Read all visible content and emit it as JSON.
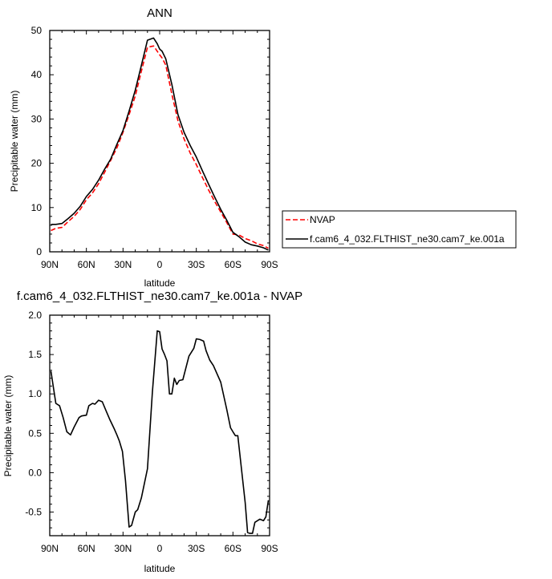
{
  "chart_data": [
    {
      "type": "line",
      "title": "ANN",
      "xlabel": "latitude",
      "ylabel": "Precipitable water (mm)",
      "x_ticks": [
        {
          "lat": 90,
          "label": "90N"
        },
        {
          "lat": 60,
          "label": "60N"
        },
        {
          "lat": 30,
          "label": "30N"
        },
        {
          "lat": 0,
          "label": "0"
        },
        {
          "lat": -30,
          "label": "30S"
        },
        {
          "lat": -60,
          "label": "60S"
        },
        {
          "lat": -90,
          "label": "90S"
        }
      ],
      "xlim": [
        90,
        -90
      ],
      "ylim": [
        0,
        50
      ],
      "y_ticks": [
        0,
        10,
        20,
        30,
        40,
        50
      ],
      "legend_position": "outside-right",
      "series": [
        {
          "name": "NVAP",
          "color": "#ff0000",
          "dash": "dashed",
          "lat": [
            89,
            85,
            80,
            75,
            70,
            65,
            60,
            55,
            50,
            45,
            40,
            35,
            30,
            25,
            20,
            15,
            10,
            5,
            2,
            0,
            -2,
            -5,
            -10,
            -15,
            -20,
            -25,
            -30,
            -35,
            -40,
            -45,
            -50,
            -55,
            -60,
            -65,
            -70,
            -75,
            -80,
            -85,
            -89
          ],
          "values": [
            4.8,
            5.3,
            5.5,
            6.8,
            8.0,
            9.6,
            11.8,
            13.3,
            15.4,
            18.0,
            20.7,
            23.5,
            27.0,
            31.0,
            35.2,
            40.8,
            46.2,
            46.5,
            45.3,
            44.5,
            43.8,
            42.2,
            35.6,
            29.6,
            25.5,
            22.3,
            19.7,
            16.8,
            14.0,
            11.4,
            9.0,
            6.6,
            4.0,
            3.8,
            3.0,
            2.5,
            1.8,
            1.4,
            0.8
          ]
        },
        {
          "name": "f.cam6_4_032.FLTHIST_ne30.cam7_ke.001a",
          "color": "#000000",
          "dash": "solid",
          "lat": [
            89,
            85,
            80,
            75,
            70,
            65,
            60,
            55,
            50,
            45,
            40,
            35,
            30,
            25,
            20,
            15,
            10,
            5,
            2,
            0,
            -2,
            -5,
            -10,
            -15,
            -20,
            -25,
            -30,
            -35,
            -40,
            -45,
            -50,
            -55,
            -60,
            -65,
            -70,
            -75,
            -80,
            -85,
            -89
          ],
          "values": [
            6.2,
            6.2,
            6.4,
            7.5,
            8.7,
            10.3,
            12.5,
            14.1,
            16.2,
            18.7,
            21.0,
            24.3,
            27.4,
            31.8,
            36.5,
            42.1,
            47.8,
            48.3,
            47.0,
            45.8,
            45.3,
            43.6,
            37.8,
            31.0,
            27.0,
            24.0,
            21.4,
            18.3,
            15.3,
            12.4,
            9.6,
            7.1,
            4.4,
            3.4,
            2.2,
            1.6,
            1.3,
            0.9,
            0.4
          ]
        }
      ]
    },
    {
      "type": "line",
      "title": "f.cam6_4_032.FLTHIST_ne30.cam7_ke.001a - NVAP",
      "xlabel": "latitude",
      "ylabel": "Precipitable water (mm)",
      "x_ticks": [
        {
          "lat": 90,
          "label": "90N"
        },
        {
          "lat": 60,
          "label": "60N"
        },
        {
          "lat": 30,
          "label": "30N"
        },
        {
          "lat": 0,
          "label": "0"
        },
        {
          "lat": -30,
          "label": "30S"
        },
        {
          "lat": -60,
          "label": "60S"
        },
        {
          "lat": -90,
          "label": "90S"
        }
      ],
      "xlim": [
        90,
        -90
      ],
      "ylim": [
        -0.8,
        2.0
      ],
      "y_ticks": [
        2.0,
        1.5,
        1.0,
        0.5,
        0.0,
        -0.5
      ],
      "y_tick_labels": [
        "2.0",
        "1.5",
        "1.0",
        "0.5",
        "0.0",
        "-0.5"
      ],
      "series": [
        {
          "color": "#000000",
          "dash": "solid",
          "lat": [
            89,
            87,
            85,
            82,
            79,
            76,
            73,
            70,
            66,
            64,
            60,
            58,
            55,
            53,
            50,
            47,
            44,
            41,
            37,
            35,
            33,
            30.5,
            28,
            25,
            23,
            20,
            18,
            15,
            10,
            6,
            2,
            0,
            -2,
            -4,
            -6,
            -8,
            -10,
            -12,
            -14,
            -16,
            -19,
            -24,
            -28,
            -30,
            -33,
            -36,
            -38,
            -41,
            -44,
            -50,
            -55,
            -58,
            -60,
            -62,
            -64,
            -70,
            -72,
            -74,
            -76,
            -78,
            -82,
            -85,
            -87,
            -89
          ],
          "values": [
            1.29,
            1.08,
            0.88,
            0.85,
            0.7,
            0.52,
            0.48,
            0.58,
            0.7,
            0.72,
            0.73,
            0.85,
            0.88,
            0.87,
            0.92,
            0.9,
            0.79,
            0.68,
            0.55,
            0.48,
            0.4,
            0.27,
            -0.1,
            -0.69,
            -0.67,
            -0.5,
            -0.47,
            -0.32,
            0.05,
            1.02,
            1.8,
            1.79,
            1.57,
            1.5,
            1.42,
            1.0,
            1.0,
            1.2,
            1.12,
            1.17,
            1.18,
            1.48,
            1.58,
            1.7,
            1.69,
            1.67,
            1.55,
            1.43,
            1.36,
            1.15,
            0.8,
            0.57,
            0.52,
            0.47,
            0.47,
            -0.38,
            -0.76,
            -0.77,
            -0.77,
            -0.63,
            -0.59,
            -0.61,
            -0.56,
            -0.35
          ]
        }
      ]
    }
  ]
}
